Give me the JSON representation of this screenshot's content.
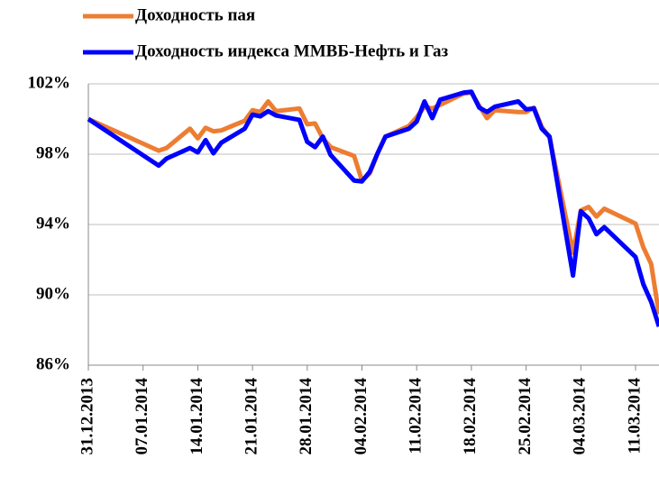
{
  "chart_data": {
    "type": "line",
    "x": [
      "31.12.2013",
      "09.01.2014",
      "10.01.2014",
      "13.01.2014",
      "14.01.2014",
      "15.01.2014",
      "16.01.2014",
      "17.01.2014",
      "20.01.2014",
      "21.01.2014",
      "22.01.2014",
      "23.01.2014",
      "24.01.2014",
      "27.01.2014",
      "28.01.2014",
      "29.01.2014",
      "30.01.2014",
      "31.01.2014",
      "03.02.2014",
      "04.02.2014",
      "05.02.2014",
      "06.02.2014",
      "07.02.2014",
      "10.02.2014",
      "11.02.2014",
      "12.02.2014",
      "13.02.2014",
      "14.02.2014",
      "17.02.2014",
      "18.02.2014",
      "19.02.2014",
      "20.02.2014",
      "21.02.2014",
      "24.02.2014",
      "25.02.2014",
      "26.02.2014",
      "27.02.2014",
      "28.02.2014",
      "03.03.2014",
      "04.03.2014",
      "05.03.2014",
      "06.03.2014",
      "07.03.2014",
      "11.03.2014",
      "12.03.2014",
      "13.03.2014",
      "14.03.2014"
    ],
    "series": [
      {
        "name": "Доходность пая",
        "color": "#ed7d31",
        "values": [
          100.0,
          98.2,
          98.35,
          99.45,
          98.9,
          99.5,
          99.3,
          99.35,
          99.9,
          100.5,
          100.4,
          101.0,
          100.45,
          100.6,
          99.7,
          99.75,
          98.9,
          98.4,
          97.9,
          96.5,
          96.9,
          98.05,
          99.0,
          99.6,
          100.1,
          100.7,
          100.6,
          100.8,
          101.45,
          101.5,
          100.75,
          100.05,
          100.5,
          100.4,
          100.4,
          100.65,
          99.55,
          98.95,
          92.4,
          94.8,
          95.0,
          94.45,
          94.9,
          94.05,
          92.7,
          91.75,
          88.9
        ]
      },
      {
        "name": "Доходность индекса ММВБ-Нефть и Газ",
        "color": "#0000ff",
        "values": [
          100.0,
          97.35,
          97.75,
          98.35,
          98.1,
          98.8,
          98.05,
          98.65,
          99.45,
          100.25,
          100.15,
          100.45,
          100.2,
          99.95,
          98.7,
          98.4,
          99.0,
          97.95,
          96.5,
          96.45,
          97.0,
          98.05,
          99.0,
          99.45,
          99.85,
          101.0,
          100.05,
          101.1,
          101.5,
          101.55,
          100.65,
          100.4,
          100.7,
          101.0,
          100.55,
          100.6,
          99.45,
          99.0,
          91.1,
          94.75,
          94.35,
          93.45,
          93.85,
          92.15,
          90.6,
          89.6,
          88.2
        ]
      }
    ],
    "xlim": [
      "31.12.2013",
      "14.03.2014"
    ],
    "xticks": [
      "31.12.2013",
      "07.01.2014",
      "14.01.2014",
      "21.01.2014",
      "28.01.2014",
      "04.02.2014",
      "11.02.2014",
      "18.02.2014",
      "25.02.2014",
      "04.03.2014",
      "11.03.2014"
    ],
    "ylim": [
      86,
      102
    ],
    "yticks": [
      {
        "value": 86,
        "label": "86%"
      },
      {
        "value": 90,
        "label": "90%"
      },
      {
        "value": 94,
        "label": "94%"
      },
      {
        "value": 98,
        "label": "98%"
      },
      {
        "value": 102,
        "label": "102%"
      }
    ],
    "grid": true
  }
}
